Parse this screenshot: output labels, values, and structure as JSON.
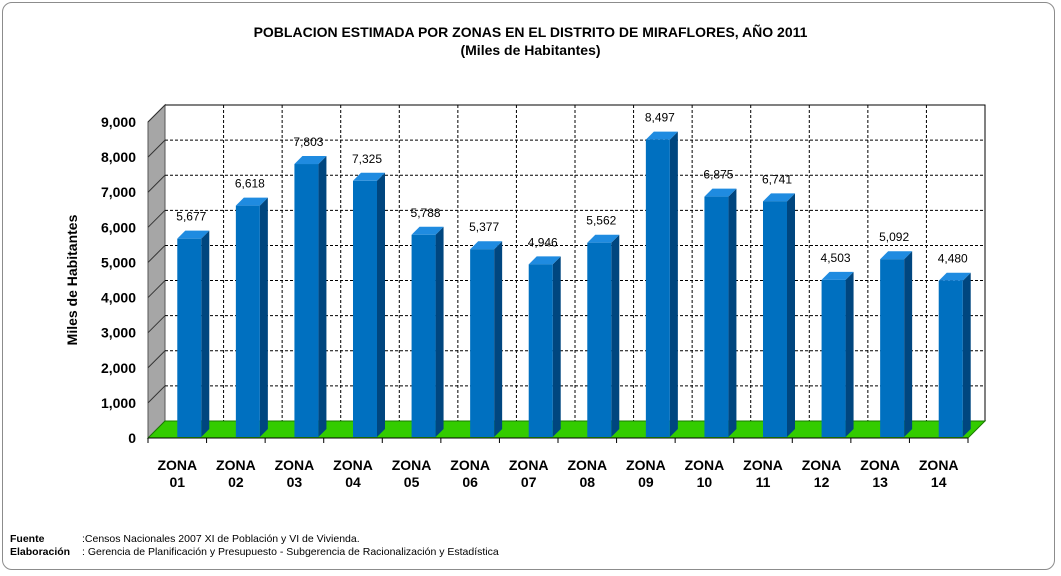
{
  "chart_data": {
    "type": "bar",
    "title": "POBLACION ESTIMADA POR ZONAS EN EL DISTRITO DE MIRAFLORES, AÑO 2011",
    "subtitle": "(Miles de Habitantes)",
    "xlabel": "",
    "ylabel": "Miles de Habitantes",
    "ylim": [
      0,
      9000
    ],
    "yticks": [
      "0",
      "1,000",
      "2,000",
      "3,000",
      "4,000",
      "5,000",
      "6,000",
      "7,000",
      "8,000",
      "9,000"
    ],
    "categories": [
      [
        "ZONA",
        "01"
      ],
      [
        "ZONA",
        "02"
      ],
      [
        "ZONA",
        "03"
      ],
      [
        "ZONA",
        "04"
      ],
      [
        "ZONA",
        "05"
      ],
      [
        "ZONA",
        "06"
      ],
      [
        "ZONA",
        "07"
      ],
      [
        "ZONA",
        "08"
      ],
      [
        "ZONA",
        "09"
      ],
      [
        "ZONA",
        "10"
      ],
      [
        "ZONA",
        "11"
      ],
      [
        "ZONA",
        "12"
      ],
      [
        "ZONA",
        "13"
      ],
      [
        "ZONA",
        "14"
      ]
    ],
    "values": [
      5677,
      6618,
      7803,
      7325,
      5788,
      5377,
      4946,
      5562,
      8497,
      6875,
      6741,
      4503,
      5092,
      4480
    ],
    "value_labels": [
      "5,677",
      "6,618",
      "7,803",
      "7,325",
      "5,788",
      "5,377",
      "4,946",
      "5,562",
      "8,497",
      "6,875",
      "6,741",
      "4,503",
      "5,092",
      "4,480"
    ],
    "grid": true,
    "colors": {
      "bar": "#0070C0",
      "bar_top": "#1F8BE0",
      "bar_side": "#00467F",
      "floor": "#33CC00"
    }
  },
  "footer": {
    "source_label": "Fuente",
    "source_text": ":Censos Nacionales 2007 XI de Población y VI de Vivienda.",
    "elab_label": "Elaboración",
    "elab_text": ": Gerencia de Planificación y Presupuesto  - Subgerencia de Racionalización y Estadística"
  }
}
